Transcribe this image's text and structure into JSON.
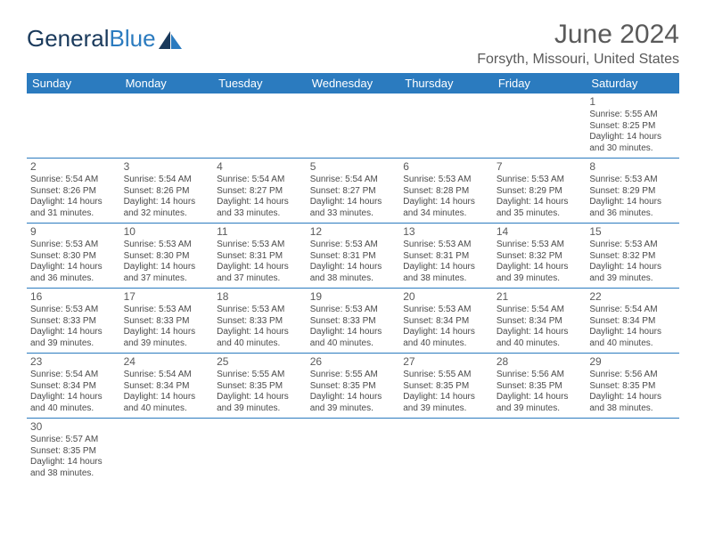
{
  "logo": {
    "word1": "General",
    "word2": "Blue"
  },
  "title": "June 2024",
  "location": "Forsyth, Missouri, United States",
  "day_headers": [
    "Sunday",
    "Monday",
    "Tuesday",
    "Wednesday",
    "Thursday",
    "Friday",
    "Saturday"
  ],
  "colors": {
    "header_bg": "#2b7bbf",
    "header_text": "#ffffff",
    "cell_border": "#2b7bbf",
    "body_text": "#4a4a4a",
    "title_text": "#5a5a5a",
    "logo_dark": "#1a3a5c",
    "logo_blue": "#2b7bbf",
    "background": "#ffffff"
  },
  "weeks": [
    [
      null,
      null,
      null,
      null,
      null,
      null,
      {
        "n": "1",
        "sr": "Sunrise: 5:55 AM",
        "ss": "Sunset: 8:25 PM",
        "dl": "Daylight: 14 hours and 30 minutes."
      }
    ],
    [
      {
        "n": "2",
        "sr": "Sunrise: 5:54 AM",
        "ss": "Sunset: 8:26 PM",
        "dl": "Daylight: 14 hours and 31 minutes."
      },
      {
        "n": "3",
        "sr": "Sunrise: 5:54 AM",
        "ss": "Sunset: 8:26 PM",
        "dl": "Daylight: 14 hours and 32 minutes."
      },
      {
        "n": "4",
        "sr": "Sunrise: 5:54 AM",
        "ss": "Sunset: 8:27 PM",
        "dl": "Daylight: 14 hours and 33 minutes."
      },
      {
        "n": "5",
        "sr": "Sunrise: 5:54 AM",
        "ss": "Sunset: 8:27 PM",
        "dl": "Daylight: 14 hours and 33 minutes."
      },
      {
        "n": "6",
        "sr": "Sunrise: 5:53 AM",
        "ss": "Sunset: 8:28 PM",
        "dl": "Daylight: 14 hours and 34 minutes."
      },
      {
        "n": "7",
        "sr": "Sunrise: 5:53 AM",
        "ss": "Sunset: 8:29 PM",
        "dl": "Daylight: 14 hours and 35 minutes."
      },
      {
        "n": "8",
        "sr": "Sunrise: 5:53 AM",
        "ss": "Sunset: 8:29 PM",
        "dl": "Daylight: 14 hours and 36 minutes."
      }
    ],
    [
      {
        "n": "9",
        "sr": "Sunrise: 5:53 AM",
        "ss": "Sunset: 8:30 PM",
        "dl": "Daylight: 14 hours and 36 minutes."
      },
      {
        "n": "10",
        "sr": "Sunrise: 5:53 AM",
        "ss": "Sunset: 8:30 PM",
        "dl": "Daylight: 14 hours and 37 minutes."
      },
      {
        "n": "11",
        "sr": "Sunrise: 5:53 AM",
        "ss": "Sunset: 8:31 PM",
        "dl": "Daylight: 14 hours and 37 minutes."
      },
      {
        "n": "12",
        "sr": "Sunrise: 5:53 AM",
        "ss": "Sunset: 8:31 PM",
        "dl": "Daylight: 14 hours and 38 minutes."
      },
      {
        "n": "13",
        "sr": "Sunrise: 5:53 AM",
        "ss": "Sunset: 8:31 PM",
        "dl": "Daylight: 14 hours and 38 minutes."
      },
      {
        "n": "14",
        "sr": "Sunrise: 5:53 AM",
        "ss": "Sunset: 8:32 PM",
        "dl": "Daylight: 14 hours and 39 minutes."
      },
      {
        "n": "15",
        "sr": "Sunrise: 5:53 AM",
        "ss": "Sunset: 8:32 PM",
        "dl": "Daylight: 14 hours and 39 minutes."
      }
    ],
    [
      {
        "n": "16",
        "sr": "Sunrise: 5:53 AM",
        "ss": "Sunset: 8:33 PM",
        "dl": "Daylight: 14 hours and 39 minutes."
      },
      {
        "n": "17",
        "sr": "Sunrise: 5:53 AM",
        "ss": "Sunset: 8:33 PM",
        "dl": "Daylight: 14 hours and 39 minutes."
      },
      {
        "n": "18",
        "sr": "Sunrise: 5:53 AM",
        "ss": "Sunset: 8:33 PM",
        "dl": "Daylight: 14 hours and 40 minutes."
      },
      {
        "n": "19",
        "sr": "Sunrise: 5:53 AM",
        "ss": "Sunset: 8:33 PM",
        "dl": "Daylight: 14 hours and 40 minutes."
      },
      {
        "n": "20",
        "sr": "Sunrise: 5:53 AM",
        "ss": "Sunset: 8:34 PM",
        "dl": "Daylight: 14 hours and 40 minutes."
      },
      {
        "n": "21",
        "sr": "Sunrise: 5:54 AM",
        "ss": "Sunset: 8:34 PM",
        "dl": "Daylight: 14 hours and 40 minutes."
      },
      {
        "n": "22",
        "sr": "Sunrise: 5:54 AM",
        "ss": "Sunset: 8:34 PM",
        "dl": "Daylight: 14 hours and 40 minutes."
      }
    ],
    [
      {
        "n": "23",
        "sr": "Sunrise: 5:54 AM",
        "ss": "Sunset: 8:34 PM",
        "dl": "Daylight: 14 hours and 40 minutes."
      },
      {
        "n": "24",
        "sr": "Sunrise: 5:54 AM",
        "ss": "Sunset: 8:34 PM",
        "dl": "Daylight: 14 hours and 40 minutes."
      },
      {
        "n": "25",
        "sr": "Sunrise: 5:55 AM",
        "ss": "Sunset: 8:35 PM",
        "dl": "Daylight: 14 hours and 39 minutes."
      },
      {
        "n": "26",
        "sr": "Sunrise: 5:55 AM",
        "ss": "Sunset: 8:35 PM",
        "dl": "Daylight: 14 hours and 39 minutes."
      },
      {
        "n": "27",
        "sr": "Sunrise: 5:55 AM",
        "ss": "Sunset: 8:35 PM",
        "dl": "Daylight: 14 hours and 39 minutes."
      },
      {
        "n": "28",
        "sr": "Sunrise: 5:56 AM",
        "ss": "Sunset: 8:35 PM",
        "dl": "Daylight: 14 hours and 39 minutes."
      },
      {
        "n": "29",
        "sr": "Sunrise: 5:56 AM",
        "ss": "Sunset: 8:35 PM",
        "dl": "Daylight: 14 hours and 38 minutes."
      }
    ],
    [
      {
        "n": "30",
        "sr": "Sunrise: 5:57 AM",
        "ss": "Sunset: 8:35 PM",
        "dl": "Daylight: 14 hours and 38 minutes."
      },
      null,
      null,
      null,
      null,
      null,
      null
    ]
  ]
}
